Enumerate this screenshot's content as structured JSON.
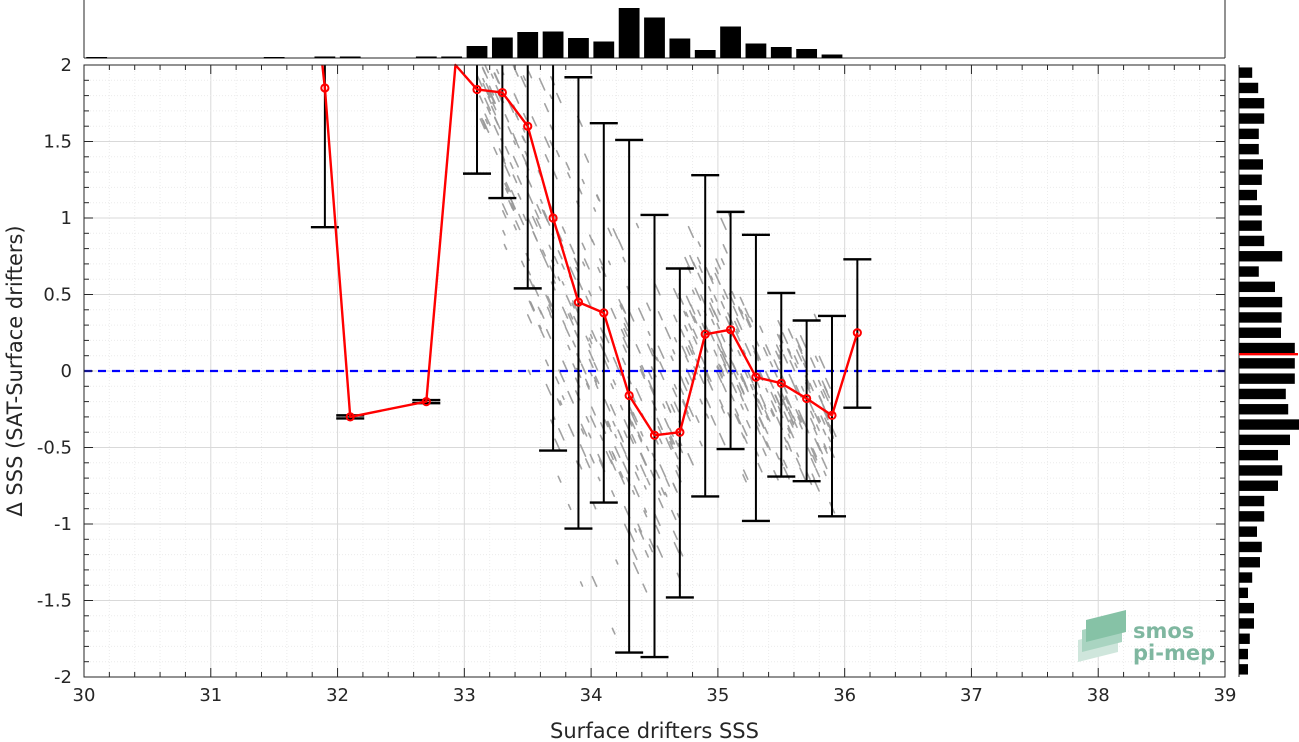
{
  "chart_data": {
    "type": "scatter",
    "title": "",
    "xlabel": "Surface drifters SSS",
    "ylabel": "Δ SSS (SAT-Surface drifters)",
    "xlim": [
      30,
      39
    ],
    "ylim": [
      -2,
      2
    ],
    "x_ticks": [
      "30",
      "31",
      "32",
      "33",
      "34",
      "35",
      "36",
      "37",
      "38",
      "39"
    ],
    "y_ticks": [
      "2",
      "1.5",
      "1",
      "0.5",
      "0",
      "-0.5",
      "-1",
      "-1.5",
      "-2"
    ],
    "grid": true,
    "zero_line": {
      "y": 0,
      "style": "dashed",
      "color": "#0000ff"
    },
    "mean_curve": {
      "color": "#ff0000",
      "x": [
        31.9,
        32.1,
        32.7,
        33.1,
        33.3,
        33.5,
        33.7,
        33.9,
        34.1,
        34.3,
        34.5,
        34.7,
        34.9,
        35.1,
        35.3,
        35.5,
        35.7,
        35.9,
        36.1
      ],
      "mean": [
        1.85,
        -0.3,
        -0.2,
        1.84,
        1.82,
        1.6,
        1.0,
        0.45,
        0.38,
        -0.16,
        -0.42,
        -0.4,
        0.24,
        0.27,
        -0.04,
        -0.08,
        -0.18,
        -0.29,
        0.25
      ],
      "lower": [
        0.94,
        -0.31,
        -0.21,
        1.29,
        1.13,
        0.54,
        -0.52,
        -1.03,
        -0.86,
        -1.84,
        -1.87,
        -1.48,
        -0.82,
        -0.51,
        -0.98,
        -0.69,
        -0.72,
        -0.95,
        -0.24
      ],
      "upper": [
        2.0,
        -0.29,
        -0.19,
        2.0,
        2.0,
        2.0,
        2.0,
        1.92,
        1.62,
        1.51,
        1.02,
        0.67,
        1.28,
        1.04,
        0.89,
        0.51,
        0.33,
        0.36,
        0.73
      ],
      "segment_before": {
        "x": 31.88,
        "y": 2.0
      },
      "segment_peak": {
        "x": 32.93,
        "y": 2.0
      }
    },
    "scatter_cloud": {
      "color": "#999999",
      "center_x": [
        33.2,
        33.4,
        33.6,
        33.8,
        34.0,
        34.2,
        34.4,
        34.6,
        34.8,
        35.0,
        35.2,
        35.4,
        35.6,
        35.8
      ],
      "center_y": [
        1.85,
        1.4,
        0.9,
        0.4,
        0.1,
        -0.2,
        -0.4,
        -0.35,
        0.1,
        0.2,
        0.0,
        -0.1,
        -0.2,
        -0.3
      ],
      "spread": [
        0.35,
        0.55,
        0.9,
        1.1,
        0.95,
        0.95,
        0.9,
        0.75,
        0.65,
        0.55,
        0.5,
        0.45,
        0.4,
        0.45
      ]
    },
    "top_histogram": {
      "bin_centers": [
        30.1,
        30.3,
        30.5,
        30.7,
        30.9,
        31.1,
        31.3,
        31.5,
        31.7,
        31.9,
        32.1,
        32.3,
        32.5,
        32.7,
        32.9,
        33.1,
        33.3,
        33.5,
        33.7,
        33.9,
        34.1,
        34.3,
        34.5,
        34.7,
        34.9,
        35.1,
        35.3,
        35.5,
        35.7,
        35.9,
        36.1
      ],
      "heights": [
        0.02,
        0,
        0,
        0,
        0,
        0,
        0,
        0.02,
        0,
        0.03,
        0.03,
        0,
        0,
        0.03,
        0.03,
        0.24,
        0.41,
        0.52,
        0.53,
        0.4,
        0.33,
        1.0,
        0.81,
        0.39,
        0.16,
        0.63,
        0.29,
        0.22,
        0.18,
        0.07,
        0
      ]
    },
    "right_histogram": {
      "bin_centers": [
        1.95,
        1.85,
        1.75,
        1.65,
        1.55,
        1.45,
        1.35,
        1.25,
        1.15,
        1.05,
        0.95,
        0.85,
        0.75,
        0.65,
        0.55,
        0.45,
        0.35,
        0.25,
        0.15,
        0.05,
        -0.05,
        -0.15,
        -0.25,
        -0.35,
        -0.45,
        -0.55,
        -0.65,
        -0.75,
        -0.85,
        -0.95,
        -1.05,
        -1.15,
        -1.25,
        -1.35,
        -1.45,
        -1.55,
        -1.65,
        -1.75,
        -1.85,
        -1.95
      ],
      "widths": [
        0.22,
        0.32,
        0.42,
        0.42,
        0.33,
        0.33,
        0.4,
        0.38,
        0.3,
        0.38,
        0.38,
        0.42,
        0.72,
        0.33,
        0.6,
        0.72,
        0.71,
        0.7,
        0.93,
        0.93,
        0.93,
        0.78,
        0.82,
        1.0,
        0.85,
        0.65,
        0.72,
        0.65,
        0.42,
        0.42,
        0.3,
        0.38,
        0.35,
        0.22,
        0.15,
        0.25,
        0.25,
        0.18,
        0.15,
        0.15
      ],
      "mean_marker": {
        "y": 0.11,
        "color": "#ff0000"
      }
    },
    "logo": {
      "line1": "smos",
      "line2": "pi-mep"
    }
  }
}
